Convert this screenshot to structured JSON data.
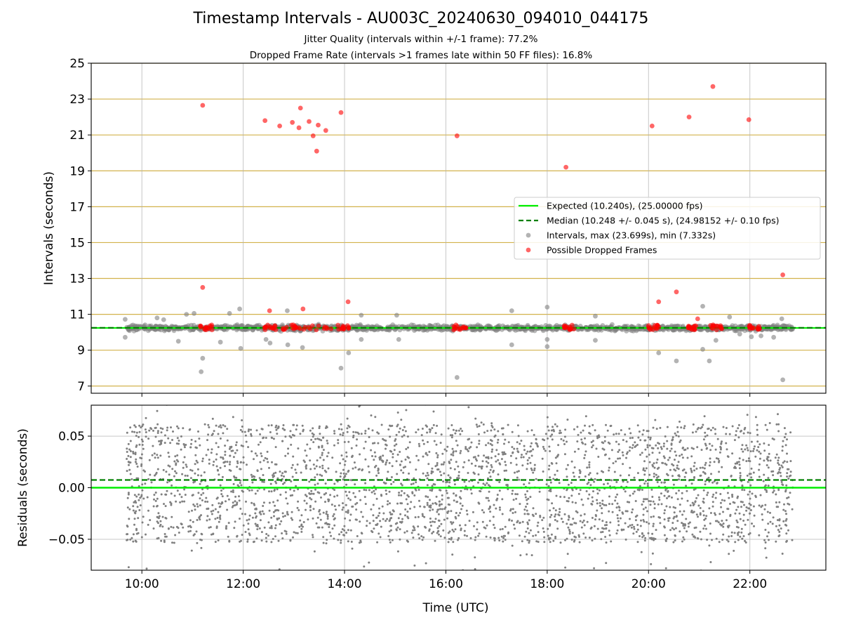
{
  "chart_data": [
    {
      "panel": "intervals",
      "type": "scatter",
      "title": "Timestamp Intervals - AU003C_20240630_094010_044175",
      "subtitle_lines": [
        "Jitter Quality (intervals within +/-1 frame): 77.2%",
        "Dropped Frame Rate (intervals >1 frames late within 50 FF files): 16.8%"
      ],
      "xlabel": "Time (UTC)",
      "ylabel": "Intervals (seconds)",
      "xlim_hours": [
        9.0,
        23.5
      ],
      "ylim": [
        6.6,
        25.0
      ],
      "y_ticks": [
        "7",
        "9",
        "11",
        "13",
        "15",
        "17",
        "19",
        "21",
        "23",
        "25"
      ],
      "x_ticks": [
        "10:00",
        "12:00",
        "14:00",
        "16:00",
        "18:00",
        "20:00",
        "22:00"
      ],
      "grid": "horizontal lines at odd intervals (goldenrod), vertical lines at x ticks (grey)",
      "legend_position": "center-right",
      "series": [
        {
          "name": "Expected (10.240s), (25.00000 fps)",
          "kind": "hline",
          "y": 10.24,
          "color": "#00ee00",
          "style": "solid"
        },
        {
          "name": "Median (10.248 +/- 0.045 s), (24.98152 +/- 0.10 fps)",
          "kind": "hline",
          "y": 10.248,
          "color": "#007f00",
          "style": "dashed"
        },
        {
          "name": "Intervals, max (23.699s), min (7.332s)",
          "kind": "scatter",
          "color": "#808080",
          "note": "dense band around 10.24 s spanning 09:42 to 22:50",
          "outliers": [
            [
              9.67,
              10.72
            ],
            [
              9.67,
              9.72
            ],
            [
              10.3,
              10.8
            ],
            [
              10.43,
              10.7
            ],
            [
              10.72,
              9.5
            ],
            [
              10.88,
              11.0
            ],
            [
              11.03,
              11.05
            ],
            [
              11.2,
              8.55
            ],
            [
              11.17,
              7.8
            ],
            [
              11.55,
              9.45
            ],
            [
              11.73,
              11.05
            ],
            [
              11.93,
              11.3
            ],
            [
              11.95,
              9.1
            ],
            [
              12.45,
              9.6
            ],
            [
              12.53,
              9.4
            ],
            [
              12.87,
              11.2
            ],
            [
              12.88,
              9.3
            ],
            [
              13.17,
              9.15
            ],
            [
              13.93,
              8.0
            ],
            [
              14.08,
              8.85
            ],
            [
              14.33,
              10.95
            ],
            [
              14.33,
              9.6
            ],
            [
              15.03,
              10.95
            ],
            [
              15.07,
              9.6
            ],
            [
              16.22,
              7.48
            ],
            [
              17.3,
              11.2
            ],
            [
              17.3,
              9.3
            ],
            [
              18.0,
              9.6
            ],
            [
              18.0,
              11.4
            ],
            [
              18.0,
              9.2
            ],
            [
              18.95,
              10.9
            ],
            [
              18.95,
              9.55
            ],
            [
              20.2,
              8.85
            ],
            [
              20.55,
              8.4
            ],
            [
              21.07,
              11.45
            ],
            [
              21.07,
              9.05
            ],
            [
              21.2,
              8.4
            ],
            [
              21.33,
              9.55
            ],
            [
              21.6,
              10.85
            ],
            [
              21.8,
              9.9
            ],
            [
              22.03,
              9.75
            ],
            [
              22.22,
              9.8
            ],
            [
              22.47,
              9.72
            ],
            [
              22.65,
              7.35
            ],
            [
              22.63,
              10.75
            ]
          ]
        },
        {
          "name": "Possible Dropped Frames",
          "kind": "scatter",
          "color": "#ff0000",
          "points": [
            [
              11.2,
              22.65
            ],
            [
              11.2,
              12.5
            ],
            [
              12.43,
              21.8
            ],
            [
              12.52,
              11.2
            ],
            [
              12.72,
              21.5
            ],
            [
              12.97,
              21.7
            ],
            [
              13.1,
              21.4
            ],
            [
              13.13,
              22.5
            ],
            [
              13.18,
              11.3
            ],
            [
              13.3,
              21.75
            ],
            [
              13.38,
              20.95
            ],
            [
              13.45,
              20.1
            ],
            [
              13.48,
              21.55
            ],
            [
              13.63,
              21.25
            ],
            [
              13.93,
              22.25
            ],
            [
              14.07,
              11.7
            ],
            [
              16.22,
              20.95
            ],
            [
              18.37,
              19.2
            ],
            [
              20.07,
              21.5
            ],
            [
              20.2,
              11.7
            ],
            [
              20.55,
              12.25
            ],
            [
              20.8,
              22.0
            ],
            [
              20.97,
              10.75
            ],
            [
              21.27,
              23.7
            ],
            [
              21.98,
              21.85
            ],
            [
              22.65,
              13.2
            ]
          ],
          "clusters_near_10_3": [
            [
              11.15,
              11.4
            ],
            [
              12.4,
              12.65
            ],
            [
              12.7,
              13.05
            ],
            [
              13.05,
              13.75
            ],
            [
              13.85,
              14.1
            ],
            [
              16.15,
              16.4
            ],
            [
              18.3,
              18.55
            ],
            [
              20.0,
              20.25
            ],
            [
              20.75,
              20.95
            ],
            [
              21.2,
              21.45
            ],
            [
              21.95,
              22.2
            ]
          ]
        }
      ]
    },
    {
      "panel": "residuals",
      "type": "scatter",
      "xlabel": "Time (UTC)",
      "ylabel": "Residuals (seconds)",
      "xlim_hours": [
        9.0,
        23.5
      ],
      "ylim": [
        -0.08,
        0.08
      ],
      "y_ticks": [
        "0.05",
        "0.00",
        "−0.05"
      ],
      "x_ticks": [
        "10:00",
        "12:00",
        "14:00",
        "16:00",
        "18:00",
        "20:00",
        "22:00"
      ],
      "grid": "both axes (light grey)",
      "series": [
        {
          "name": "Expected",
          "kind": "hline",
          "y": 0.0,
          "color": "#00ee00",
          "style": "solid"
        },
        {
          "name": "Median",
          "kind": "hline",
          "y": 0.0075,
          "color": "#007f00",
          "style": "dashed"
        },
        {
          "name": "Residuals",
          "kind": "scatter",
          "color": "#808080",
          "note": "about 3000 points spread roughly uniformly between -0.08 and 0.08 s, concentrated between -0.05 and 0.06 s, x range 09:42 to 22:50"
        }
      ]
    }
  ],
  "colors": {
    "grid_h_top": "#d2b24c",
    "grid": "#b0b0b0",
    "expected": "#00ee00",
    "median": "#007f00",
    "interval_points": "#808080",
    "dropped_points": "#ff0000"
  }
}
